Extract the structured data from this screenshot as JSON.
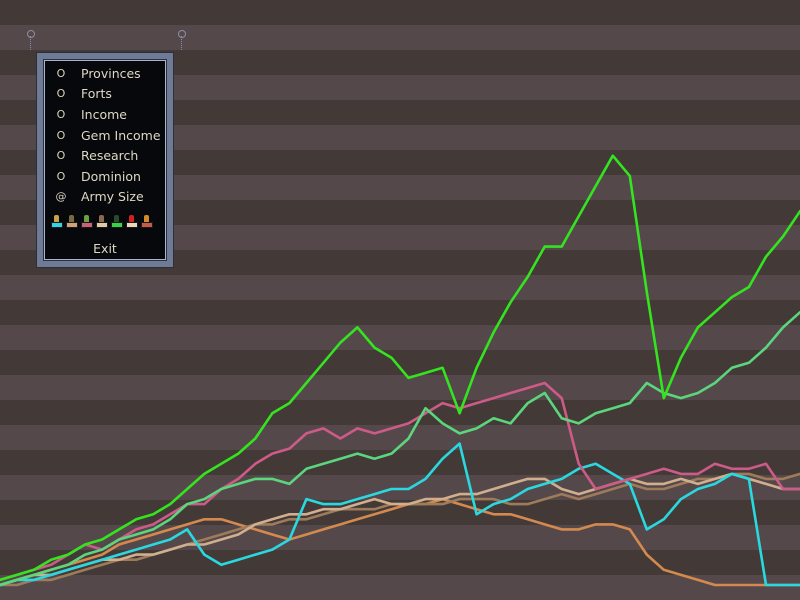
{
  "menu": {
    "items": [
      {
        "label": "Provinces",
        "selected": false
      },
      {
        "label": "Forts",
        "selected": false
      },
      {
        "label": "Income",
        "selected": false
      },
      {
        "label": "Gem Income",
        "selected": false
      },
      {
        "label": "Research",
        "selected": false
      },
      {
        "label": "Dominion",
        "selected": false
      },
      {
        "label": "Army Size",
        "selected": true
      }
    ],
    "exit_label": "Exit"
  },
  "nation_flags": [
    {
      "cloth": "#2fd6e8",
      "crest": "#c9a24a"
    },
    {
      "cloth": "#cfa07a",
      "crest": "#7a6a40"
    },
    {
      "cloth": "#c9607a",
      "crest": "#6aa040"
    },
    {
      "cloth": "#e0c9a8",
      "crest": "#8a6a4a"
    },
    {
      "cloth": "#36d24a",
      "crest": "#2a4a2a"
    },
    {
      "cloth": "#e8d8b8",
      "crest": "#d02020"
    },
    {
      "cloth": "#c85a4a",
      "crest": "#d08a2a"
    }
  ],
  "chart_data": {
    "type": "line",
    "title": "",
    "xlabel": "",
    "ylabel": "",
    "x": [
      0,
      1,
      2,
      3,
      4,
      5,
      6,
      7,
      8,
      9,
      10,
      11,
      12,
      13,
      14,
      15,
      16,
      17,
      18,
      19,
      20,
      21,
      22,
      23,
      24,
      25,
      26,
      27,
      28,
      29,
      30,
      31,
      32,
      33,
      34,
      35,
      36,
      37,
      38,
      39,
      40,
      41,
      42,
      43,
      44,
      45,
      46,
      47
    ],
    "ylim": [
      0,
      100
    ],
    "grid": true,
    "series": [
      {
        "color": "#33e41f",
        "values": [
          2,
          3,
          4,
          6,
          7,
          9,
          10,
          12,
          14,
          15,
          17,
          20,
          23,
          25,
          27,
          30,
          35,
          37,
          41,
          45,
          49,
          52,
          48,
          46,
          42,
          43,
          44,
          35,
          44,
          51,
          57,
          62,
          68,
          68,
          74,
          80,
          86,
          82,
          59,
          38,
          46,
          52,
          55,
          58,
          60,
          66,
          70,
          75
        ]
      },
      {
        "color": "#5bd67d",
        "values": [
          1,
          2,
          3,
          4,
          5,
          7,
          8,
          10,
          11,
          12,
          14,
          17,
          18,
          20,
          21,
          22,
          22,
          21,
          24,
          25,
          26,
          27,
          26,
          27,
          30,
          36,
          33,
          31,
          32,
          34,
          33,
          37,
          39,
          34,
          33,
          35,
          36,
          37,
          41,
          39,
          38,
          39,
          41,
          44,
          45,
          48,
          52,
          55
        ]
      },
      {
        "color": "#cd5b88",
        "values": [
          2,
          3,
          4,
          5,
          7,
          9,
          8,
          10,
          12,
          13,
          15,
          17,
          17,
          20,
          22,
          25,
          27,
          28,
          31,
          32,
          30,
          32,
          31,
          32,
          33,
          35,
          37,
          36,
          37,
          38,
          39,
          40,
          41,
          38,
          25,
          20,
          21,
          22,
          23,
          24,
          23,
          23,
          25,
          24,
          24,
          25,
          20,
          20
        ]
      },
      {
        "color": "#2ad8e0",
        "values": [
          1,
          2,
          2,
          3,
          4,
          5,
          6,
          7,
          8,
          9,
          10,
          12,
          7,
          5,
          6,
          7,
          8,
          10,
          18,
          17,
          17,
          18,
          19,
          20,
          20,
          22,
          26,
          29,
          15,
          17,
          18,
          20,
          21,
          22,
          24,
          25,
          23,
          21,
          12,
          14,
          18,
          20,
          21,
          23,
          22,
          1,
          1,
          1
        ]
      },
      {
        "color": "#d0ae8e",
        "values": [
          1,
          2,
          3,
          3,
          4,
          5,
          6,
          6,
          7,
          7,
          8,
          9,
          9,
          10,
          11,
          13,
          14,
          15,
          15,
          16,
          16,
          17,
          18,
          17,
          17,
          18,
          18,
          19,
          19,
          20,
          21,
          22,
          22,
          20,
          19,
          20,
          21,
          22,
          21,
          21,
          22,
          21,
          22,
          23,
          22,
          21,
          20,
          20
        ]
      },
      {
        "color": "#9d7b5b",
        "values": [
          1,
          1,
          2,
          2,
          3,
          4,
          5,
          6,
          6,
          7,
          8,
          9,
          10,
          11,
          12,
          13,
          13,
          14,
          14,
          15,
          16,
          16,
          16,
          17,
          17,
          17,
          17,
          18,
          18,
          18,
          17,
          17,
          18,
          19,
          18,
          19,
          20,
          21,
          20,
          20,
          21,
          22,
          22,
          23,
          23,
          22,
          22,
          23
        ]
      },
      {
        "color": "#d48a4f",
        "values": [
          1,
          2,
          3,
          4,
          5,
          6,
          7,
          9,
          10,
          11,
          12,
          13,
          14,
          14,
          13,
          12,
          11,
          10,
          11,
          12,
          13,
          14,
          15,
          16,
          17,
          17,
          18,
          17,
          16,
          15,
          15,
          14,
          13,
          12,
          12,
          13,
          13,
          12,
          7,
          4,
          3,
          2,
          1,
          1,
          1,
          1,
          1,
          1
        ]
      }
    ]
  }
}
